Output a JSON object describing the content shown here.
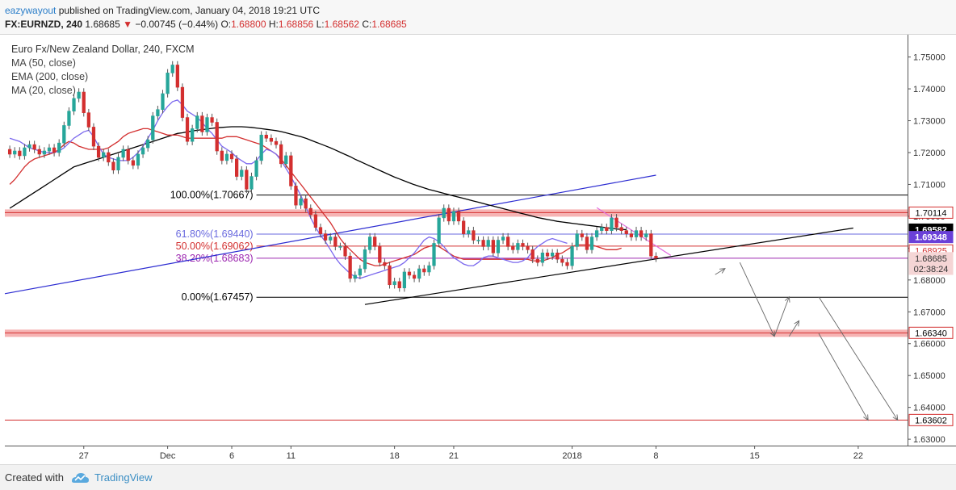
{
  "header": {
    "author": "eazywayout",
    "published": "published on TradingView.com, January 04, 2018 19:21 UTC",
    "symbol": "FX:EURNZD, 240",
    "last": "1.68685",
    "change": "−0.00745 (−0.44%)",
    "o_label": "O:",
    "o_value": "1.68800",
    "h_label": "H:",
    "h_value": "1.68856",
    "l_label": "L:",
    "l_value": "1.68562",
    "c_label": "C:",
    "c_value": "1.68685"
  },
  "footer": {
    "created_with": "Created with",
    "brand": "TradingView"
  },
  "chart_data": {
    "type": "candlestick",
    "title": "Euro Fx/New Zealand Dollar, 240, FXCM",
    "indicators": [
      {
        "name": "MA (50, close)",
        "color": "#7b68ee"
      },
      {
        "name": "EMA (200, close)",
        "color": "#000000"
      },
      {
        "name": "MA (20, close)",
        "color": "#d32f2f"
      }
    ],
    "ylim": [
      1.628,
      1.757
    ],
    "y_ticks": [
      "1.75000",
      "1.74000",
      "1.73000",
      "1.72000",
      "1.71000",
      "1.70000",
      "1.69000",
      "1.68000",
      "1.67000",
      "1.66000",
      "1.65000",
      "1.64000",
      "1.63000"
    ],
    "x_ticks": [
      {
        "label": "27",
        "i": 15
      },
      {
        "label": "Dec",
        "i": 32
      },
      {
        "label": "6",
        "i": 45
      },
      {
        "label": "11",
        "i": 57
      },
      {
        "label": "18",
        "i": 78
      },
      {
        "label": "21",
        "i": 90
      },
      {
        "label": "2018",
        "i": 114
      },
      {
        "label": "8",
        "i": 131
      },
      {
        "label": "15",
        "i": 151
      },
      {
        "label": "22",
        "i": 172
      }
    ],
    "x_range": [
      -1,
      182
    ],
    "closes": [
      1.7195,
      1.7205,
      1.719,
      1.7215,
      1.7225,
      1.721,
      1.7195,
      1.7205,
      1.7215,
      1.72,
      1.723,
      1.7285,
      1.733,
      1.737,
      1.739,
      1.7325,
      1.728,
      1.722,
      1.7185,
      1.72,
      1.717,
      1.7145,
      1.7185,
      1.721,
      1.7175,
      1.716,
      1.7195,
      1.7215,
      1.724,
      1.7315,
      1.7335,
      1.7385,
      1.745,
      1.7475,
      1.7405,
      1.731,
      1.7235,
      1.7275,
      1.7315,
      1.7265,
      1.731,
      1.7295,
      1.7205,
      1.7175,
      1.7195,
      1.718,
      1.7125,
      1.7145,
      1.7085,
      1.7125,
      1.7175,
      1.7255,
      1.7245,
      1.7235,
      1.7225,
      1.7165,
      1.719,
      1.7095,
      1.7035,
      1.7055,
      1.7025,
      1.7005,
      1.6965,
      1.6945,
      1.6925,
      1.6935,
      1.6905,
      1.6905,
      1.6875,
      1.6805,
      1.6815,
      1.6835,
      1.6895,
      1.6935,
      1.6905,
      1.6855,
      1.6845,
      1.6785,
      1.6795,
      1.6775,
      1.6825,
      1.6815,
      1.6805,
      1.6835,
      1.6825,
      1.6845,
      1.6915,
      1.6995,
      1.7025,
      1.6985,
      1.7015,
      1.6985,
      1.6945,
      1.6955,
      1.6925,
      1.6925,
      1.6905,
      1.6925,
      1.6885,
      1.6925,
      1.6935,
      1.6905,
      1.6895,
      1.6915,
      1.6905,
      1.6895,
      1.6865,
      1.6855,
      1.6885,
      1.6875,
      1.6885,
      1.6865,
      1.6855,
      1.6845,
      1.6905,
      1.6945,
      1.6935,
      1.6895,
      1.6935,
      1.6955,
      1.6965,
      1.6955,
      1.6995,
      1.6965,
      1.6955,
      1.6945,
      1.6935,
      1.6955,
      1.6935,
      1.6945,
      1.6875,
      1.68685
    ],
    "ma20": [
      1.71,
      1.7115,
      1.7135,
      1.7155,
      1.717,
      1.718,
      1.7185,
      1.719,
      1.7195,
      1.72,
      1.721,
      1.7225,
      1.7235,
      1.723,
      1.722,
      1.7215,
      1.721,
      1.721,
      1.721,
      1.721,
      1.7215,
      1.7225,
      1.7235,
      1.725,
      1.726,
      1.7265,
      1.727,
      1.7275,
      1.7275,
      1.727,
      1.7265,
      1.726,
      1.7255,
      1.7255,
      1.7255,
      1.725,
      1.7245,
      1.7245,
      1.7245,
      1.7245,
      1.7245,
      1.7245,
      1.7245,
      1.7245,
      1.725,
      1.725,
      1.725,
      1.7245,
      1.724,
      1.7235,
      1.723,
      1.7225,
      1.7215,
      1.7205,
      1.7195,
      1.718,
      1.716,
      1.714,
      1.712,
      1.71,
      1.708,
      1.706,
      1.704,
      1.702,
      1.7,
      1.698,
      1.6955,
      1.693,
      1.691,
      1.6895,
      1.688,
      1.6865,
      1.6855,
      1.685,
      1.6845,
      1.6845,
      1.685,
      1.6855,
      1.686,
      1.6865,
      1.687,
      1.6875,
      1.688,
      1.689,
      1.69,
      1.6905,
      1.691,
      1.6905,
      1.6895,
      1.6885,
      1.6875,
      1.687,
      1.6865,
      1.6865,
      1.6865,
      1.6865,
      1.6865,
      1.6865,
      1.6865,
      1.6865,
      1.6865,
      1.6865,
      1.6865,
      1.6865,
      1.6865,
      1.6865,
      1.686,
      1.686,
      1.686,
      1.6865,
      1.687,
      1.688,
      1.6885,
      1.6895,
      1.6905,
      1.691,
      1.691,
      1.691,
      1.691,
      1.6905,
      1.69,
      1.6895,
      1.6895,
      1.6895,
      1.69
    ],
    "ma50": [
      1.7245,
      1.724,
      1.7235,
      1.7225,
      1.7215,
      1.721,
      1.7205,
      1.72,
      1.72,
      1.72,
      1.7205,
      1.7215,
      1.723,
      1.7245,
      1.7255,
      1.7265,
      1.727,
      1.725,
      1.722,
      1.7195,
      1.7185,
      1.718,
      1.7175,
      1.7175,
      1.7175,
      1.7185,
      1.72,
      1.722,
      1.7245,
      1.727,
      1.73,
      1.7325,
      1.7345,
      1.736,
      1.7365,
      1.735,
      1.733,
      1.732,
      1.731,
      1.7295,
      1.7275,
      1.726,
      1.724,
      1.722,
      1.721,
      1.72,
      1.7185,
      1.7175,
      1.7165,
      1.7165,
      1.7175,
      1.7195,
      1.721,
      1.7205,
      1.7195,
      1.7175,
      1.715,
      1.7125,
      1.7095,
      1.7065,
      1.703,
      1.6995,
      1.6965,
      1.694,
      1.692,
      1.6895,
      1.687,
      1.685,
      1.6835,
      1.682,
      1.681,
      1.6805,
      1.681,
      1.6815,
      1.682,
      1.6825,
      1.683,
      1.6835,
      1.684,
      1.6845,
      1.6855,
      1.687,
      1.6885,
      1.6905,
      1.6925,
      1.6935,
      1.693,
      1.692,
      1.6905,
      1.6885,
      1.687,
      1.686,
      1.685,
      1.6845,
      1.6845,
      1.6855,
      1.687,
      1.6875,
      1.6875,
      1.687,
      1.6865,
      1.686,
      1.6855,
      1.6855,
      1.686,
      1.687,
      1.689,
      1.6905,
      1.6915,
      1.6925,
      1.693,
      1.6925,
      1.692,
      1.6915
    ],
    "ema200": [
      1.7025,
      1.7035,
      1.7045,
      1.7055,
      1.7065,
      1.7075,
      1.7085,
      1.7095,
      1.7105,
      1.7115,
      1.7125,
      1.7135,
      1.7145,
      1.7155,
      1.716,
      1.7165,
      1.717,
      1.7175,
      1.718,
      1.7185,
      1.719,
      1.7195,
      1.72,
      1.7205,
      1.721,
      1.7215,
      1.722,
      1.7225,
      1.723,
      1.7235,
      1.724,
      1.7245,
      1.725,
      1.7255,
      1.726,
      1.7262,
      1.7265,
      1.7268,
      1.727,
      1.7272,
      1.7274,
      1.7276,
      1.7278,
      1.7279,
      1.728,
      1.7281,
      1.7281,
      1.7281,
      1.728,
      1.7279,
      1.7277,
      1.7275,
      1.7273,
      1.7271,
      1.7269,
      1.7266,
      1.7262,
      1.7258,
      1.7254,
      1.725,
      1.7245,
      1.7239,
      1.7233,
      1.7227,
      1.7221,
      1.7215,
      1.7208,
      1.7201,
      1.7194,
      1.7187,
      1.7179,
      1.7172,
      1.7165,
      1.7158,
      1.7151,
      1.7144,
      1.7137,
      1.713,
      1.7123,
      1.7117,
      1.7111,
      1.7105,
      1.7099,
      1.7094,
      1.7089,
      1.7084,
      1.708,
      1.7076,
      1.7072,
      1.7068,
      1.7064,
      1.706,
      1.7056,
      1.7052,
      1.7048,
      1.7044,
      1.704,
      1.7036,
      1.7032,
      1.7028,
      1.7024,
      1.702,
      1.7016,
      1.7012,
      1.7008,
      1.7004,
      1.7,
      1.6996,
      1.6993,
      1.699,
      1.6987,
      1.6984,
      1.6982,
      1.698,
      1.6978,
      1.6976,
      1.6974,
      1.6972,
      1.697,
      1.6968,
      1.6966,
      1.6964,
      1.6962,
      1.696,
      1.6959,
      1.6958
    ],
    "horizontal_levels": [
      {
        "price": 1.70667,
        "label": "100.00%(1.70667)",
        "color": "#000000"
      },
      {
        "price": 1.6944,
        "label": "61.80%(1.69440)",
        "color": "#6a6adf"
      },
      {
        "price": 1.69062,
        "label": "50.00%(1.69062)",
        "color": "#d32f2f"
      },
      {
        "price": 1.68683,
        "label": "38.20%(1.68683)",
        "color": "#9c27b0"
      },
      {
        "price": 1.67457,
        "label": "0.00%(1.67457)",
        "color": "#000000"
      }
    ],
    "zones": [
      {
        "price": 1.70114,
        "color": "#f4a6a6"
      },
      {
        "price": 1.6634,
        "color": "#f4a6a6"
      },
      {
        "price": 1.63602,
        "color": "#d32f2f"
      }
    ],
    "price_labels": [
      {
        "text": "1.70114",
        "price": 1.70114,
        "bg": "#ffffff",
        "fg": "#000000",
        "border": "#d32f2f"
      },
      {
        "text": "1.69582",
        "price": 1.69582,
        "bg": "#000000",
        "fg": "#ffffff",
        "border": "#000000"
      },
      {
        "text": "1.69348",
        "price": 1.69348,
        "bg": "#6a40d8",
        "fg": "#ffffff",
        "border": "#6a40d8"
      },
      {
        "text": "1.68925",
        "price": 1.68925,
        "bg": "#ffffff",
        "fg": "#d32f2f",
        "border": "#d32f2f"
      },
      {
        "text": "1.68685",
        "price": 1.68685,
        "bg": "#f5d5d5",
        "fg": "#333333",
        "border": "#f5d5d5"
      },
      {
        "text": "02:38:24",
        "price": 1.6835,
        "bg": "#f5d5d5",
        "fg": "#333333",
        "border": "#f5d5d5"
      },
      {
        "text": "1.66340",
        "price": 1.6634,
        "bg": "#ffffff",
        "fg": "#000000",
        "border": "#d32f2f"
      },
      {
        "text": "1.63602",
        "price": 1.63602,
        "bg": "#ffffff",
        "fg": "#000000",
        "border": "#d32f2f"
      }
    ],
    "trend_lines": [
      {
        "from": [
          -1,
          1.6757
        ],
        "to": [
          131,
          1.7129
        ],
        "color": "#2b2bd1"
      },
      {
        "from": [
          72,
          1.6723
        ],
        "to": [
          171,
          1.6963
        ],
        "color": "#000000"
      },
      {
        "from": [
          119,
          1.7027
        ],
        "to": [
          134,
          1.6877
        ],
        "color": "#e26ee0"
      }
    ],
    "projection": [
      [
        [
          143,
          1.6817
        ],
        [
          145,
          1.6836
        ]
      ],
      [
        [
          148,
          1.6855
        ],
        [
          155,
          1.6623
        ]
      ],
      [
        [
          155,
          1.6623
        ],
        [
          158,
          1.6747
        ]
      ],
      [
        [
          158,
          1.6623
        ],
        [
          160,
          1.6672
        ]
      ],
      [
        [
          164,
          1.6747
        ],
        [
          180,
          1.636
        ]
      ],
      [
        [
          164,
          1.6632
        ],
        [
          174,
          1.636
        ]
      ]
    ]
  }
}
